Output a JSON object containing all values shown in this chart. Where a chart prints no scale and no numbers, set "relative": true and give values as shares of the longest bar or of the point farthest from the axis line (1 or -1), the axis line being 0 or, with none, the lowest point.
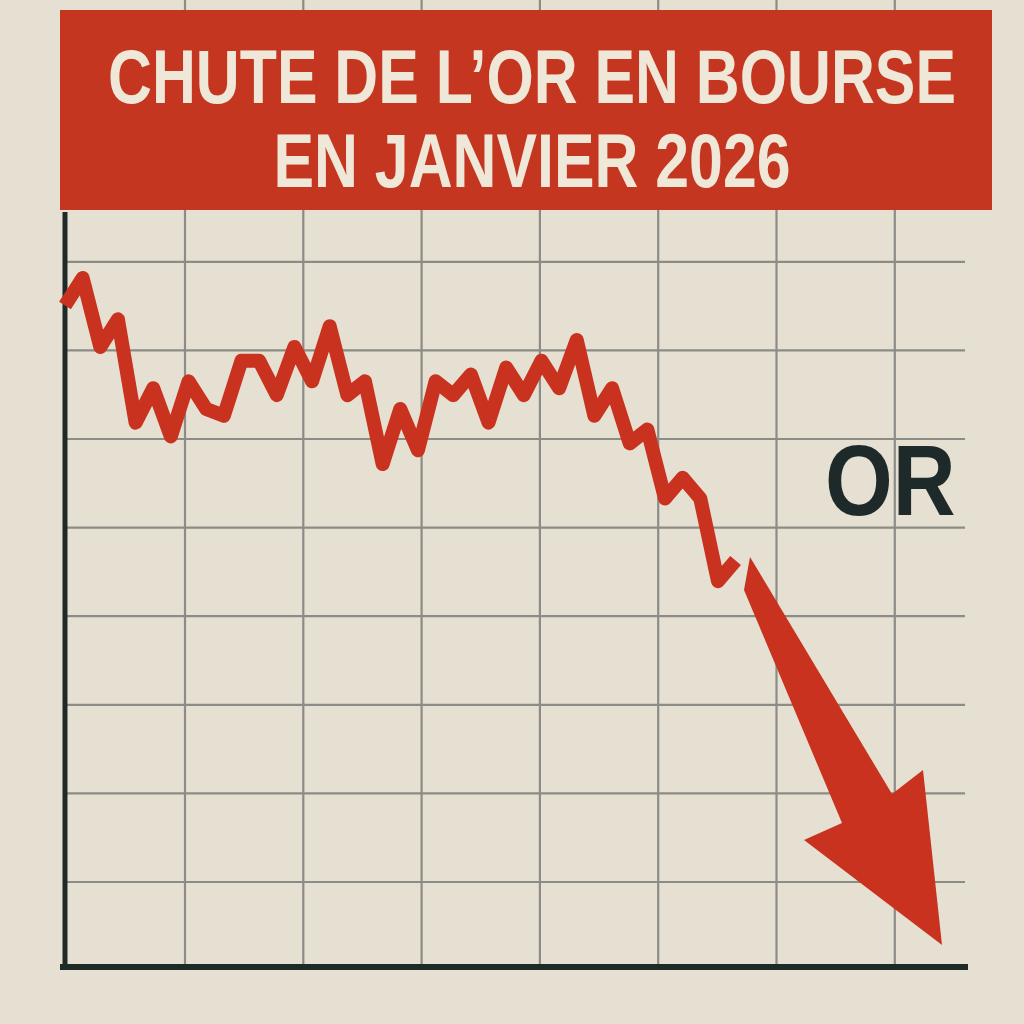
{
  "chart_data": {
    "type": "line",
    "title": "CHUTE DE L’OR EN BOURSE EN JANVIER 2026",
    "relative": true,
    "grid": true,
    "marker": "none",
    "line_style": "solid",
    "categories": [
      null,
      null,
      null,
      null,
      null,
      null,
      null,
      null,
      null,
      null,
      null,
      null,
      null,
      null,
      null,
      null,
      null,
      null,
      null,
      null,
      null,
      null,
      null,
      null,
      null,
      null,
      null,
      null,
      null,
      null,
      null,
      null,
      null,
      null,
      null,
      null,
      null,
      null,
      null,
      null,
      null,
      null,
      null,
      null,
      null,
      null,
      null,
      null,
      null,
      null,
      null,
      null
    ],
    "series": [
      {
        "name": "OR",
        "color": "#c8321e",
        "values": [
          0.96,
          1.0,
          0.9,
          0.94,
          0.79,
          0.84,
          0.77,
          0.85,
          0.81,
          0.8,
          0.88,
          0.88,
          0.83,
          0.9,
          0.85,
          0.93,
          0.83,
          0.85,
          0.73,
          0.81,
          0.75,
          0.85,
          0.83,
          0.86,
          0.79,
          0.87,
          0.83,
          0.88,
          0.84,
          0.91,
          0.8,
          0.84,
          0.76,
          0.78,
          0.68,
          0.71,
          0.68,
          0.56,
          0.59,
          null,
          null,
          null,
          null,
          null,
          null,
          null,
          null,
          null,
          null,
          null,
          null,
          null
        ]
      }
    ]
  }
}
